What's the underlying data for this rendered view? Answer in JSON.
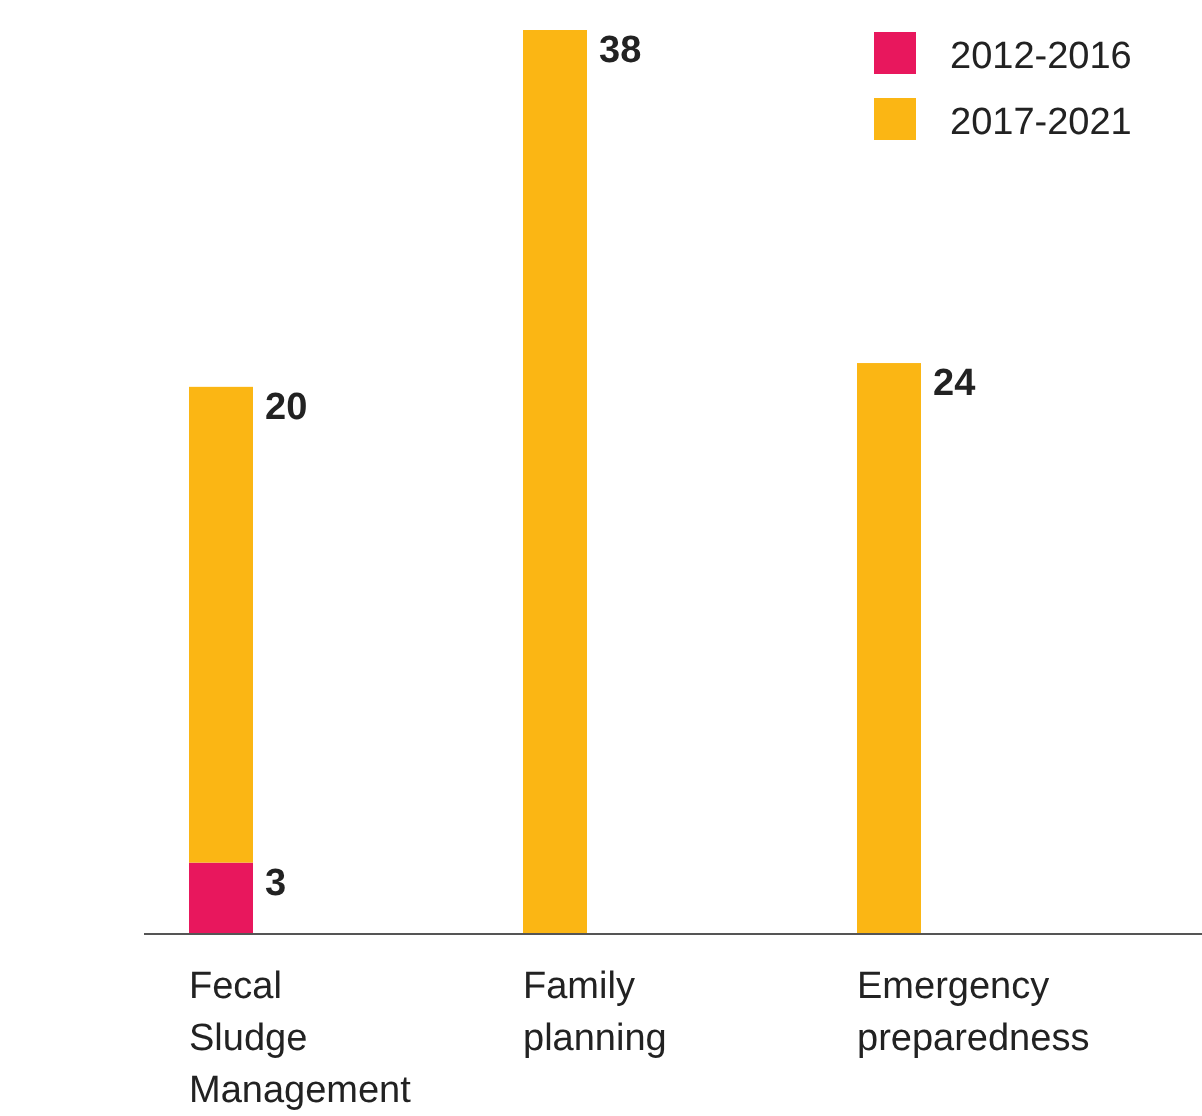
{
  "chart_data": {
    "type": "bar",
    "stacked": true,
    "categories": [
      "Fecal Sludge Management",
      "Family planning",
      "Emergency preparedness"
    ],
    "series": [
      {
        "name": "2012-2016",
        "color": "#e8175d",
        "values": [
          3,
          null,
          null
        ]
      },
      {
        "name": "2017-2021",
        "color": "#fbb614",
        "values": [
          20,
          38,
          24
        ]
      }
    ],
    "data_labels": true,
    "legend": "top right"
  }
}
